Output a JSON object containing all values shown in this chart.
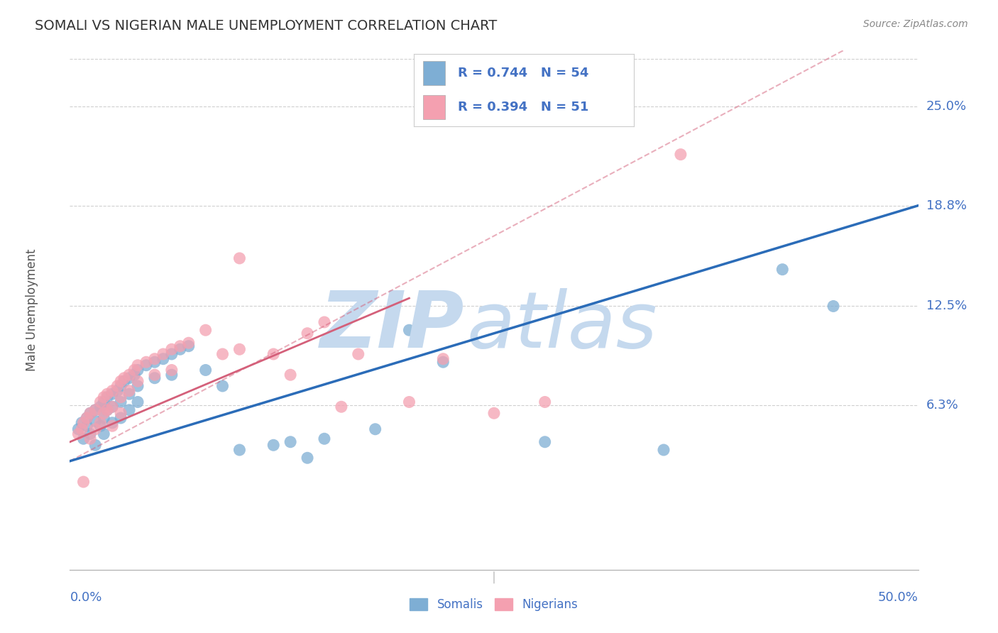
{
  "title": "SOMALI VS NIGERIAN MALE UNEMPLOYMENT CORRELATION CHART",
  "source": "Source: ZipAtlas.com",
  "xlabel_bottom_left": "0.0%",
  "xlabel_bottom_right": "50.0%",
  "ylabel": "Male Unemployment",
  "y_tick_labels": [
    "6.3%",
    "12.5%",
    "18.8%",
    "25.0%"
  ],
  "y_tick_values": [
    0.063,
    0.125,
    0.188,
    0.25
  ],
  "x_min": 0.0,
  "x_max": 0.5,
  "y_min": -0.04,
  "y_max": 0.285,
  "somali_color": "#7eaed4",
  "nigerian_color": "#f4a0b0",
  "somali_R": 0.744,
  "somali_N": 54,
  "nigerian_R": 0.394,
  "nigerian_N": 51,
  "somali_line_color": "#2b6cb8",
  "nigerian_line_color": "#d4607a",
  "watermark_color": "#c5d9ee",
  "background_color": "#ffffff",
  "grid_color": "#d0d0d0",
  "title_color": "#333333",
  "axis_label_color": "#4472c4",
  "somali_points": [
    [
      0.005,
      0.048
    ],
    [
      0.007,
      0.052
    ],
    [
      0.008,
      0.042
    ],
    [
      0.01,
      0.055
    ],
    [
      0.01,
      0.05
    ],
    [
      0.012,
      0.058
    ],
    [
      0.012,
      0.045
    ],
    [
      0.015,
      0.06
    ],
    [
      0.015,
      0.053
    ],
    [
      0.015,
      0.038
    ],
    [
      0.018,
      0.062
    ],
    [
      0.018,
      0.05
    ],
    [
      0.02,
      0.065
    ],
    [
      0.02,
      0.055
    ],
    [
      0.02,
      0.045
    ],
    [
      0.022,
      0.068
    ],
    [
      0.022,
      0.06
    ],
    [
      0.025,
      0.07
    ],
    [
      0.025,
      0.062
    ],
    [
      0.025,
      0.052
    ],
    [
      0.028,
      0.072
    ],
    [
      0.03,
      0.075
    ],
    [
      0.03,
      0.065
    ],
    [
      0.03,
      0.055
    ],
    [
      0.032,
      0.078
    ],
    [
      0.035,
      0.08
    ],
    [
      0.035,
      0.07
    ],
    [
      0.035,
      0.06
    ],
    [
      0.038,
      0.082
    ],
    [
      0.04,
      0.085
    ],
    [
      0.04,
      0.075
    ],
    [
      0.04,
      0.065
    ],
    [
      0.045,
      0.088
    ],
    [
      0.05,
      0.09
    ],
    [
      0.05,
      0.08
    ],
    [
      0.055,
      0.092
    ],
    [
      0.06,
      0.095
    ],
    [
      0.06,
      0.082
    ],
    [
      0.065,
      0.098
    ],
    [
      0.07,
      0.1
    ],
    [
      0.08,
      0.085
    ],
    [
      0.09,
      0.075
    ],
    [
      0.1,
      0.035
    ],
    [
      0.12,
      0.038
    ],
    [
      0.13,
      0.04
    ],
    [
      0.14,
      0.03
    ],
    [
      0.15,
      0.042
    ],
    [
      0.18,
      0.048
    ],
    [
      0.2,
      0.11
    ],
    [
      0.22,
      0.09
    ],
    [
      0.28,
      0.04
    ],
    [
      0.35,
      0.035
    ],
    [
      0.42,
      0.148
    ],
    [
      0.45,
      0.125
    ]
  ],
  "nigerian_points": [
    [
      0.005,
      0.045
    ],
    [
      0.007,
      0.048
    ],
    [
      0.008,
      0.052
    ],
    [
      0.008,
      0.015
    ],
    [
      0.01,
      0.055
    ],
    [
      0.012,
      0.058
    ],
    [
      0.012,
      0.042
    ],
    [
      0.015,
      0.06
    ],
    [
      0.015,
      0.048
    ],
    [
      0.018,
      0.065
    ],
    [
      0.018,
      0.052
    ],
    [
      0.02,
      0.068
    ],
    [
      0.02,
      0.058
    ],
    [
      0.022,
      0.07
    ],
    [
      0.022,
      0.06
    ],
    [
      0.025,
      0.072
    ],
    [
      0.025,
      0.062
    ],
    [
      0.025,
      0.05
    ],
    [
      0.028,
      0.075
    ],
    [
      0.03,
      0.078
    ],
    [
      0.03,
      0.068
    ],
    [
      0.03,
      0.058
    ],
    [
      0.032,
      0.08
    ],
    [
      0.035,
      0.082
    ],
    [
      0.035,
      0.072
    ],
    [
      0.038,
      0.085
    ],
    [
      0.04,
      0.088
    ],
    [
      0.04,
      0.078
    ],
    [
      0.045,
      0.09
    ],
    [
      0.05,
      0.092
    ],
    [
      0.05,
      0.082
    ],
    [
      0.055,
      0.095
    ],
    [
      0.06,
      0.098
    ],
    [
      0.06,
      0.085
    ],
    [
      0.065,
      0.1
    ],
    [
      0.07,
      0.102
    ],
    [
      0.08,
      0.11
    ],
    [
      0.09,
      0.095
    ],
    [
      0.1,
      0.155
    ],
    [
      0.1,
      0.098
    ],
    [
      0.12,
      0.095
    ],
    [
      0.13,
      0.082
    ],
    [
      0.14,
      0.108
    ],
    [
      0.15,
      0.115
    ],
    [
      0.16,
      0.062
    ],
    [
      0.17,
      0.095
    ],
    [
      0.2,
      0.065
    ],
    [
      0.22,
      0.092
    ],
    [
      0.25,
      0.058
    ],
    [
      0.28,
      0.065
    ],
    [
      0.36,
      0.22
    ]
  ],
  "somali_line": {
    "x_start": 0.0,
    "y_start": 0.028,
    "x_end": 0.5,
    "y_end": 0.188
  },
  "nigerian_line": {
    "x_start": 0.0,
    "y_start": 0.04,
    "x_end": 0.2,
    "y_end": 0.13
  },
  "somali_dashed_line": {
    "x_start": 0.0,
    "y_start": 0.028,
    "x_end": 0.5,
    "y_end": 0.31
  }
}
